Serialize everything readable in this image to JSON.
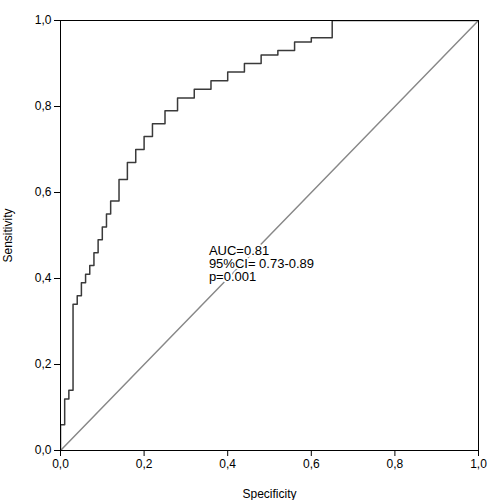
{
  "chart_data": {
    "type": "line",
    "xlabel": "Specificity",
    "ylabel": "Sensitivity",
    "xlim": [
      0.0,
      1.0
    ],
    "ylim": [
      0.0,
      1.0
    ],
    "xticks": [
      {
        "value": 0.0,
        "label": "0,0"
      },
      {
        "value": 0.2,
        "label": "0,2"
      },
      {
        "value": 0.4,
        "label": "0,4"
      },
      {
        "value": 0.6,
        "label": "0,6"
      },
      {
        "value": 0.8,
        "label": "0,8"
      },
      {
        "value": 1.0,
        "label": "1,0"
      }
    ],
    "yticks": [
      {
        "value": 0.0,
        "label": "0,0"
      },
      {
        "value": 0.2,
        "label": "0,2"
      },
      {
        "value": 0.4,
        "label": "0,4"
      },
      {
        "value": 0.6,
        "label": "0,6"
      },
      {
        "value": 0.8,
        "label": "0,8"
      },
      {
        "value": 1.0,
        "label": "1,0"
      }
    ],
    "grid": false,
    "series": [
      {
        "color": "#888888",
        "x": [
          0.0,
          1.0
        ],
        "values": [
          0.0,
          1.0
        ]
      },
      {
        "color": "#3a3a3a",
        "x": [
          0.0,
          0.0,
          0.01,
          0.01,
          0.02,
          0.02,
          0.03,
          0.03,
          0.04,
          0.04,
          0.05,
          0.05,
          0.06,
          0.06,
          0.07,
          0.07,
          0.08,
          0.08,
          0.09,
          0.09,
          0.1,
          0.1,
          0.11,
          0.11,
          0.12,
          0.12,
          0.14,
          0.14,
          0.16,
          0.16,
          0.18,
          0.18,
          0.2,
          0.2,
          0.22,
          0.22,
          0.25,
          0.25,
          0.28,
          0.28,
          0.32,
          0.32,
          0.36,
          0.36,
          0.4,
          0.4,
          0.44,
          0.44,
          0.48,
          0.48,
          0.52,
          0.52,
          0.56,
          0.56,
          0.6,
          0.6,
          0.65,
          0.65,
          0.68,
          0.68,
          1.0,
          1.0
        ],
        "values": [
          0.0,
          0.06,
          0.06,
          0.12,
          0.12,
          0.14,
          0.14,
          0.34,
          0.34,
          0.36,
          0.36,
          0.39,
          0.39,
          0.41,
          0.41,
          0.43,
          0.43,
          0.46,
          0.46,
          0.49,
          0.49,
          0.52,
          0.52,
          0.55,
          0.55,
          0.58,
          0.58,
          0.63,
          0.63,
          0.67,
          0.67,
          0.7,
          0.7,
          0.73,
          0.73,
          0.76,
          0.76,
          0.79,
          0.79,
          0.82,
          0.82,
          0.84,
          0.84,
          0.86,
          0.86,
          0.88,
          0.88,
          0.9,
          0.9,
          0.92,
          0.92,
          0.93,
          0.93,
          0.95,
          0.95,
          0.96,
          0.96,
          1.0,
          1.0,
          1.0,
          1.0,
          1.0
        ]
      }
    ],
    "annotations": [
      {
        "text": "AUC=0.81\n95%CI= 0.73-0.89\np=0.001",
        "x": 0.355,
        "y": 0.435
      }
    ]
  }
}
